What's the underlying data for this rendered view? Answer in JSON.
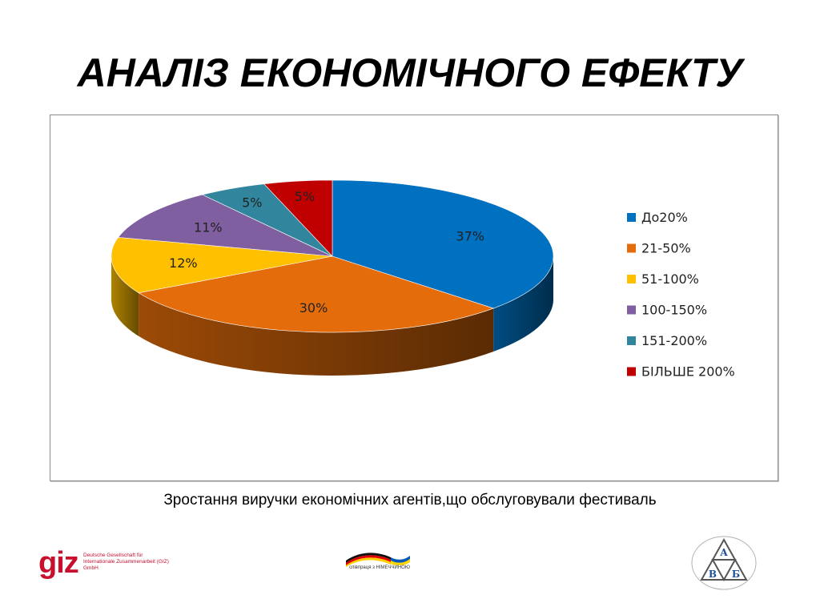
{
  "slide": {
    "title": "АНАЛІЗ ЕКОНОМІЧНОГО ЕФЕКТУ",
    "caption": "Зростання виручки економічних агентів,що обслуговували фестиваль"
  },
  "chart_data": {
    "type": "pie",
    "style": "3d",
    "title": "",
    "legend_position": "right",
    "categories": [
      "До20%",
      "21-50%",
      "51-100%",
      "100-150%",
      "151-200%",
      "БІЛЬШЕ 200%"
    ],
    "values": [
      37,
      30,
      12,
      11,
      5,
      5
    ],
    "labels": [
      "37%",
      "30%",
      "12%",
      "11%",
      "5%",
      "5%"
    ],
    "colors": [
      "#0070C0",
      "#E46C0A",
      "#FFC000",
      "#7F5F9F",
      "#31859C",
      "#C00000"
    ]
  },
  "logos": {
    "giz": {
      "word": "giz",
      "subtitle": "Deutsche Gesellschaft für Internationale Zusammenarbeit (GIZ) GmbH"
    },
    "cooperation": {
      "text": "співпраця з НІМЕЧЧИНОЮ"
    },
    "avb": {
      "letters": [
        "А",
        "В",
        "Б"
      ]
    }
  }
}
